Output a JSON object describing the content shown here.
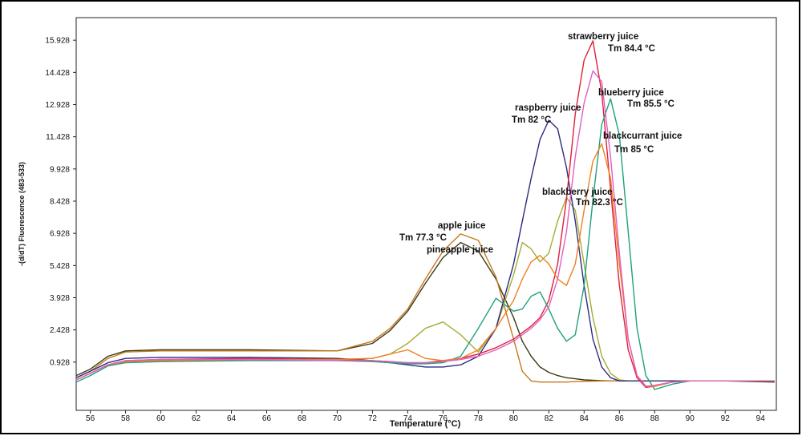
{
  "chart_data": {
    "type": "line",
    "xlabel": "Temperature (°C)",
    "ylabel": "-(d/dT) Fluorescence (483-533)",
    "xlim": [
      55.2,
      94.9
    ],
    "ylim": [
      -1.32,
      16.98
    ],
    "xticks": [
      56,
      58,
      60,
      62,
      64,
      66,
      68,
      70,
      72,
      74,
      76,
      78,
      80,
      82,
      84,
      86,
      88,
      90,
      92,
      94
    ],
    "yticks": [
      0.928,
      2.428,
      3.928,
      5.428,
      6.928,
      8.428,
      9.928,
      11.428,
      12.928,
      14.428,
      15.928
    ],
    "x": [
      55.2,
      56,
      57,
      58,
      60,
      65,
      70,
      72,
      73,
      74,
      75,
      76,
      77,
      78,
      79,
      80,
      80.5,
      81,
      81.5,
      82,
      82.5,
      83,
      83.5,
      84,
      84.5,
      85,
      85.5,
      86,
      86.5,
      87,
      87.5,
      88,
      89,
      90,
      92,
      94.8
    ],
    "series": [
      {
        "color": "#3a3a14",
        "values": [
          0.3,
          0.6,
          1.2,
          1.45,
          1.5,
          1.5,
          1.45,
          1.8,
          2.4,
          3.3,
          4.6,
          5.8,
          6.5,
          6.1,
          4.8,
          3.0,
          1.9,
          1.2,
          0.7,
          0.45,
          0.3,
          0.2,
          0.15,
          0.1,
          0.08,
          0.06,
          0.05,
          0.05,
          0.05,
          0.05,
          0.05,
          0.05,
          0.05,
          0.05,
          0.05,
          0.0
        ]
      },
      {
        "color": "#c8781e",
        "values": [
          0.2,
          0.5,
          1.1,
          1.4,
          1.45,
          1.45,
          1.45,
          1.9,
          2.5,
          3.4,
          4.8,
          6.1,
          6.9,
          6.6,
          4.9,
          2.0,
          0.5,
          0.05,
          0.0,
          0.0,
          0.0,
          0.0,
          0.02,
          0.03,
          0.04,
          0.05,
          0.05,
          0.05,
          0.05,
          0.05,
          0.05,
          0.05,
          0.05,
          0.05,
          0.05,
          0.05
        ]
      },
      {
        "color": "#a4ac34",
        "values": [
          0.1,
          0.4,
          0.8,
          0.95,
          1.0,
          1.05,
          1.05,
          1.1,
          1.3,
          1.8,
          2.5,
          2.8,
          2.2,
          1.4,
          2.5,
          5.0,
          6.5,
          6.2,
          5.6,
          6.0,
          7.5,
          8.6,
          8.0,
          5.5,
          3.0,
          1.2,
          0.4,
          0.1,
          0.05,
          0.05,
          0.05,
          0.05,
          0.05,
          0.05,
          0.05,
          0.05
        ]
      },
      {
        "color": "#2c2c82",
        "values": [
          0.2,
          0.5,
          0.9,
          1.1,
          1.15,
          1.15,
          1.1,
          1.0,
          0.9,
          0.8,
          0.7,
          0.7,
          0.8,
          1.2,
          2.5,
          5.5,
          7.5,
          9.5,
          11.3,
          12.2,
          11.8,
          10.0,
          7.5,
          4.5,
          2.0,
          0.7,
          0.2,
          0.05,
          0.05,
          0.05,
          0.05,
          0.05,
          0.05,
          0.05,
          0.05,
          0.05
        ]
      },
      {
        "color": "#e0203a",
        "values": [
          0.1,
          0.4,
          0.8,
          1.0,
          1.05,
          1.1,
          1.05,
          1.0,
          0.95,
          0.9,
          0.9,
          1.0,
          1.1,
          1.3,
          1.6,
          2.0,
          2.3,
          2.6,
          3.0,
          3.8,
          5.5,
          8.5,
          12.5,
          15.0,
          15.9,
          13.5,
          9.0,
          4.5,
          1.5,
          0.2,
          -0.25,
          -0.2,
          0.0,
          0.05,
          0.05,
          0.05
        ]
      },
      {
        "color": "#1fa07e",
        "values": [
          0.0,
          0.3,
          0.75,
          0.9,
          0.95,
          1.0,
          1.0,
          0.95,
          0.9,
          0.85,
          0.85,
          0.9,
          1.2,
          2.5,
          3.9,
          3.3,
          3.4,
          4.0,
          4.2,
          3.4,
          2.5,
          1.9,
          2.2,
          4.5,
          8.5,
          12.0,
          13.2,
          11.5,
          7.0,
          2.5,
          0.3,
          -0.35,
          -0.1,
          0.05,
          0.05,
          0.05
        ]
      },
      {
        "color": "#f08020",
        "values": [
          0.1,
          0.4,
          0.8,
          0.95,
          1.0,
          1.05,
          1.05,
          1.1,
          1.3,
          1.5,
          1.1,
          1.0,
          1.1,
          1.5,
          2.5,
          3.8,
          4.8,
          5.6,
          5.9,
          5.5,
          4.8,
          4.5,
          5.5,
          8.0,
          10.3,
          11.1,
          9.5,
          5.5,
          2.0,
          0.3,
          -0.2,
          -0.2,
          0.0,
          0.05,
          0.05,
          0.05
        ]
      },
      {
        "color": "#e060c0",
        "values": [
          0.1,
          0.4,
          0.8,
          1.0,
          1.05,
          1.05,
          1.0,
          1.0,
          0.95,
          0.9,
          0.9,
          0.95,
          1.05,
          1.2,
          1.5,
          1.9,
          2.2,
          2.5,
          2.9,
          3.5,
          4.8,
          7.0,
          10.5,
          13.0,
          14.5,
          14.0,
          10.5,
          6.0,
          2.0,
          0.3,
          -0.2,
          -0.15,
          0.0,
          0.05,
          0.05,
          0.05
        ]
      }
    ],
    "annotations": [
      "strawberry juice",
      "Tm 84.4 °C",
      "blueberry juice",
      "Tm 85.5 °C",
      "raspberry juice",
      "Tm 82 °C",
      "blackcurrant juice",
      "Tm 85 °C",
      "blackberry juice",
      "Tm 82.3 °C",
      "apple juice",
      "Tm 77.3 °C",
      "pineapple juice"
    ]
  }
}
